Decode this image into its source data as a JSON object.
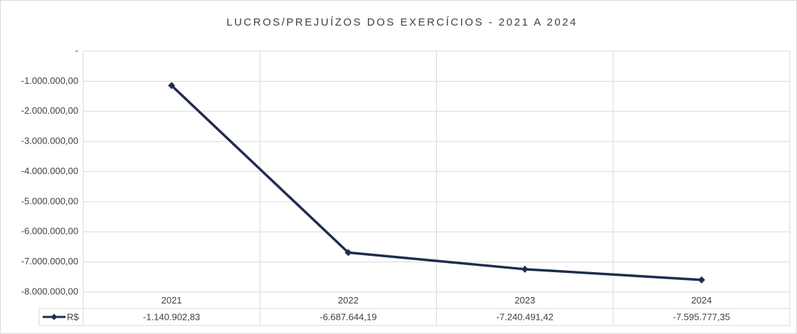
{
  "chart_data": {
    "type": "line",
    "title": "LUCROS/PREJUÍZOS DOS EXERCÍCIOS - 2021 A 2024",
    "categories": [
      "2021",
      "2022",
      "2023",
      "2024"
    ],
    "series": [
      {
        "name": "R$",
        "color": "#1f2d4e",
        "values": [
          -1140902.83,
          -6687644.19,
          -7240491.42,
          -7595777.35
        ],
        "value_labels": [
          "-1.140.902,83",
          "-6.687.644,19",
          "-7.240.491,42",
          "-7.595.777,35"
        ]
      }
    ],
    "ylim": [
      -8000000,
      0
    ],
    "yticks": [
      {
        "value": 0,
        "label": "-"
      },
      {
        "value": -1000000,
        "label": "-1.000.000,00"
      },
      {
        "value": -2000000,
        "label": "-2.000.000,00"
      },
      {
        "value": -3000000,
        "label": "-3.000.000,00"
      },
      {
        "value": -4000000,
        "label": "-4.000.000,00"
      },
      {
        "value": -5000000,
        "label": "-5.000.000,00"
      },
      {
        "value": -6000000,
        "label": "-6.000.000,00"
      },
      {
        "value": -7000000,
        "label": "-7.000.000,00"
      },
      {
        "value": -8000000,
        "label": "-8.000.000,00"
      }
    ],
    "grid": true
  }
}
